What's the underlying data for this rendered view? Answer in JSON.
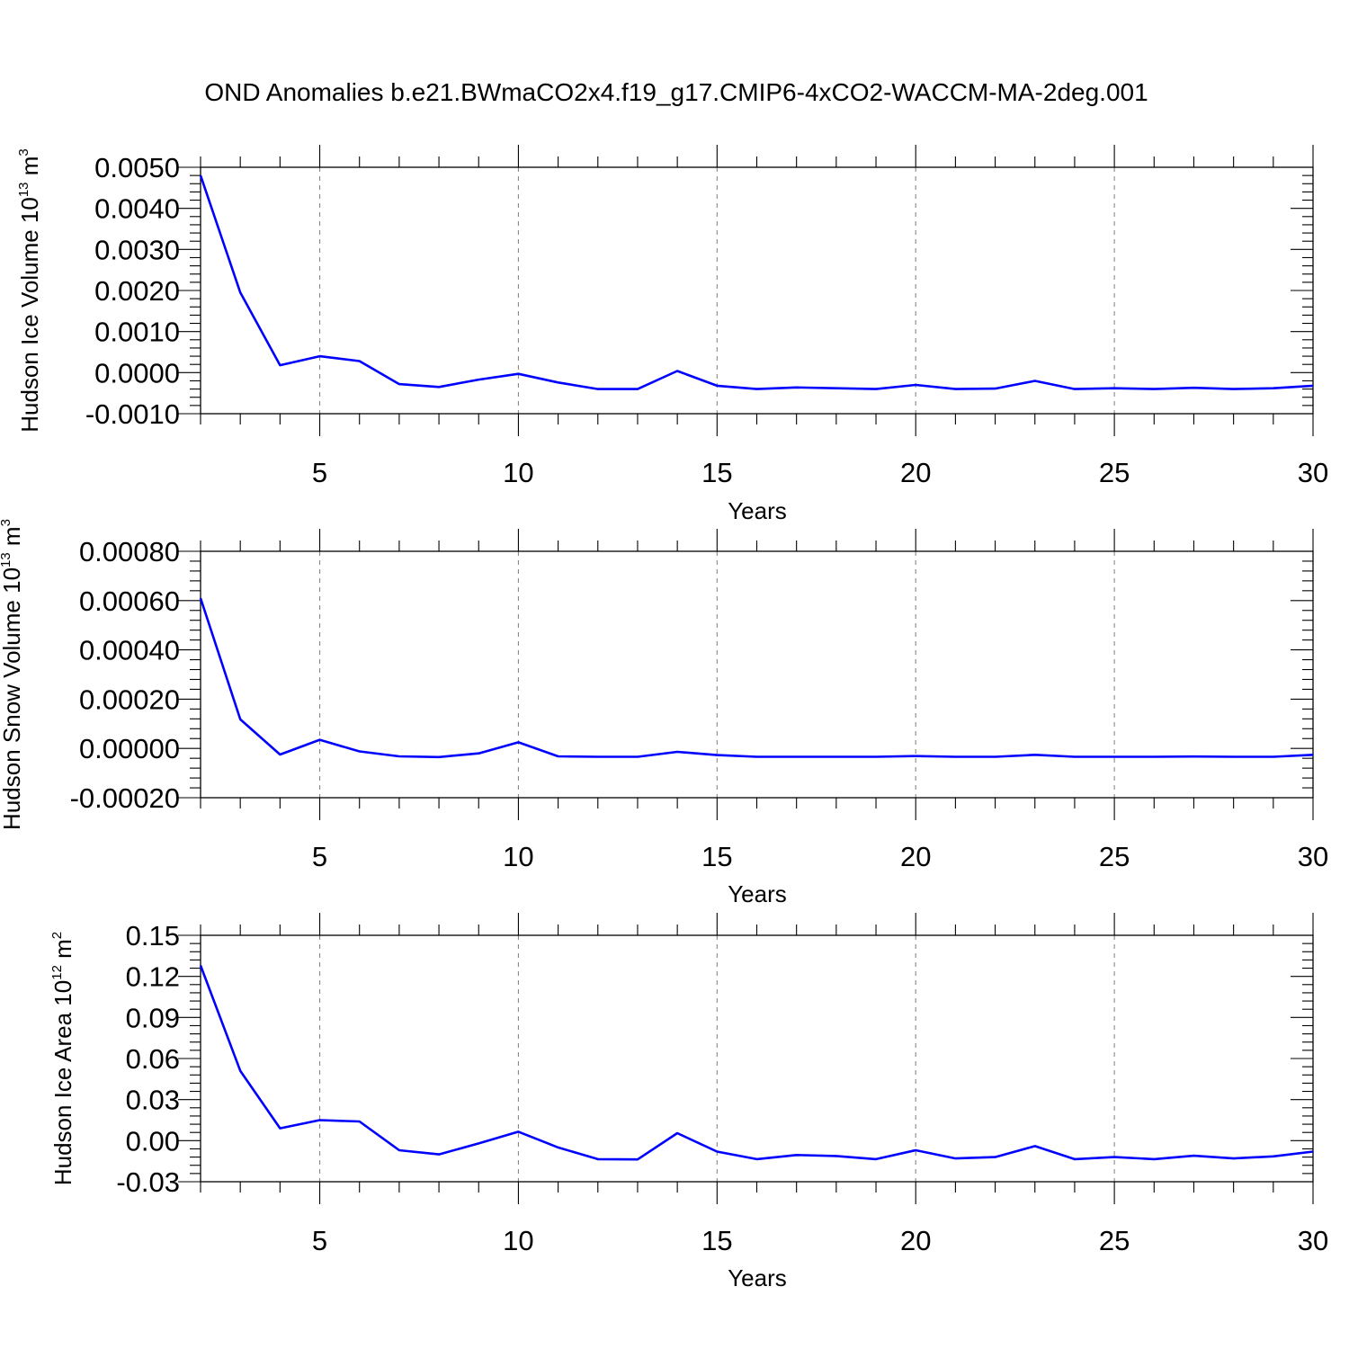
{
  "figure": {
    "title": "OND Anomalies b.e21.BWmaCO2x4.f19_g17.CMIP6-4xCO2-WACCM-MA-2deg.001",
    "line_color": "#0000ff"
  },
  "chart_data": [
    {
      "type": "line",
      "title": "",
      "xlabel": "Years",
      "ylabel_prefix": "Hudson Ice Volume 10",
      "ylabel_exp": "13",
      "ylabel_unit": " m",
      "ylabel_unit_exp": "3",
      "xlim": [
        2,
        30
      ],
      "ylim": [
        -0.001,
        0.005
      ],
      "x_ticks": [
        5,
        10,
        15,
        20,
        25,
        30
      ],
      "x_tick_labels": [
        "5",
        "10",
        "15",
        "20",
        "25",
        "30"
      ],
      "y_ticks": [
        -0.001,
        0.0,
        0.001,
        0.002,
        0.003,
        0.004,
        0.005
      ],
      "y_tick_labels": [
        "-0.0010",
        "0.0000",
        "0.0010",
        "0.0020",
        "0.0030",
        "0.0040",
        "0.0050"
      ],
      "y_minor_step": 0.0002,
      "grid": "x-dashed",
      "series": [
        {
          "name": "Hudson Ice Volume",
          "x": [
            2,
            3,
            4,
            5,
            6,
            7,
            8,
            9,
            10,
            11,
            12,
            13,
            14,
            15,
            16,
            17,
            18,
            19,
            20,
            21,
            22,
            23,
            24,
            25,
            26,
            27,
            28,
            29,
            30
          ],
          "values": [
            0.0048,
            0.00195,
            0.00018,
            0.0004,
            0.00028,
            -0.00028,
            -0.00035,
            -0.00017,
            -3e-05,
            -0.00024,
            -0.0004,
            -0.0004,
            4e-05,
            -0.00032,
            -0.0004,
            -0.00036,
            -0.00038,
            -0.0004,
            -0.0003,
            -0.0004,
            -0.00039,
            -0.0002,
            -0.0004,
            -0.00038,
            -0.0004,
            -0.00037,
            -0.0004,
            -0.00038,
            -0.00032
          ]
        }
      ]
    },
    {
      "type": "line",
      "title": "",
      "xlabel": "Years",
      "ylabel_prefix": "Hudson Snow Volume 10",
      "ylabel_exp": "13",
      "ylabel_unit": " m",
      "ylabel_unit_exp": "3",
      "xlim": [
        2,
        30
      ],
      "ylim": [
        -0.0002,
        0.0008
      ],
      "x_ticks": [
        5,
        10,
        15,
        20,
        25,
        30
      ],
      "x_tick_labels": [
        "5",
        "10",
        "15",
        "20",
        "25",
        "30"
      ],
      "y_ticks": [
        -0.0002,
        0.0,
        0.0002,
        0.0004,
        0.0006,
        0.0008
      ],
      "y_tick_labels": [
        "-0.00020",
        "0.00000",
        "0.00020",
        "0.00040",
        "0.00060",
        "0.00080"
      ],
      "y_minor_step": 4e-05,
      "grid": "x-dashed",
      "series": [
        {
          "name": "Hudson Snow Volume",
          "x": [
            2,
            3,
            4,
            5,
            6,
            7,
            8,
            9,
            10,
            11,
            12,
            13,
            14,
            15,
            16,
            17,
            18,
            19,
            20,
            21,
            22,
            23,
            24,
            25,
            26,
            27,
            28,
            29,
            30
          ],
          "values": [
            0.00061,
            0.000118,
            -2.5e-05,
            3.5e-05,
            -1.2e-05,
            -3.2e-05,
            -3.5e-05,
            -2e-05,
            2.5e-05,
            -3.2e-05,
            -3.4e-05,
            -3.4e-05,
            -1.4e-05,
            -2.7e-05,
            -3.4e-05,
            -3.4e-05,
            -3.4e-05,
            -3.4e-05,
            -3.1e-05,
            -3.4e-05,
            -3.4e-05,
            -2.6e-05,
            -3.4e-05,
            -3.4e-05,
            -3.4e-05,
            -3.3e-05,
            -3.4e-05,
            -3.4e-05,
            -2.6e-05
          ]
        }
      ]
    },
    {
      "type": "line",
      "title": "",
      "xlabel": "Years",
      "ylabel_prefix": "Hudson Ice Area 10",
      "ylabel_exp": "12",
      "ylabel_unit": " m",
      "ylabel_unit_exp": "2",
      "xlim": [
        2,
        30
      ],
      "ylim": [
        -0.03,
        0.15
      ],
      "x_ticks": [
        5,
        10,
        15,
        20,
        25,
        30
      ],
      "x_tick_labels": [
        "5",
        "10",
        "15",
        "20",
        "25",
        "30"
      ],
      "y_ticks": [
        -0.03,
        0.0,
        0.03,
        0.06,
        0.09,
        0.12,
        0.15
      ],
      "y_tick_labels": [
        "-0.03",
        "0.00",
        "0.03",
        "0.06",
        "0.09",
        "0.12",
        "0.15"
      ],
      "y_minor_step": 0.006,
      "grid": "x-dashed",
      "series": [
        {
          "name": "Hudson Ice Area",
          "x": [
            2,
            3,
            4,
            5,
            6,
            7,
            8,
            9,
            10,
            11,
            12,
            13,
            14,
            15,
            16,
            17,
            18,
            19,
            20,
            21,
            22,
            23,
            24,
            25,
            26,
            27,
            28,
            29,
            30
          ],
          "values": [
            0.128,
            0.051,
            0.009,
            0.015,
            0.014,
            -0.007,
            -0.01,
            -0.002,
            0.0065,
            -0.005,
            -0.0135,
            -0.0137,
            0.0055,
            -0.008,
            -0.0135,
            -0.0105,
            -0.0112,
            -0.0135,
            -0.007,
            -0.013,
            -0.012,
            -0.004,
            -0.0135,
            -0.012,
            -0.0135,
            -0.011,
            -0.013,
            -0.0115,
            -0.008
          ]
        }
      ]
    }
  ]
}
